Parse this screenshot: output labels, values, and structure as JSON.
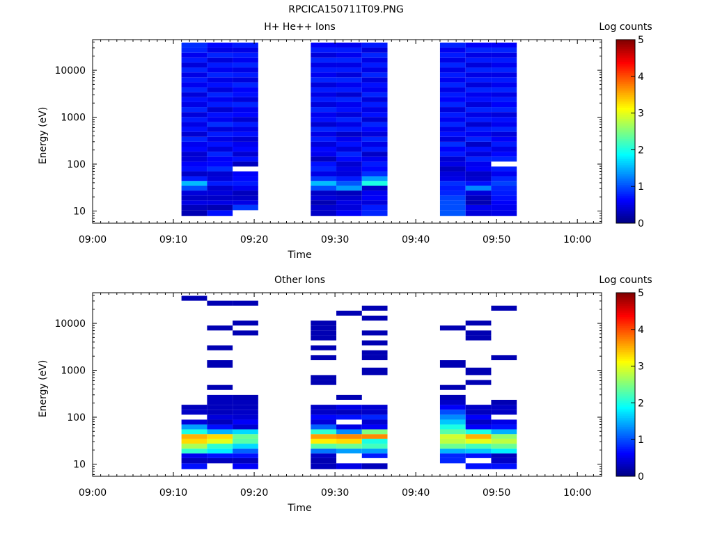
{
  "figure_title": "RPCICA150711T09.PNG",
  "chart_data": [
    {
      "type": "heatmap",
      "title": "H+ He++ Ions",
      "xlabel": "Time",
      "ylabel": "Energy (eV)",
      "yscale": "log",
      "ylim": [
        5.5,
        45000
      ],
      "xlim": [
        "09:00",
        "10:03"
      ],
      "x_ticks": [
        "09:00",
        "09:10",
        "09:20",
        "09:30",
        "09:40",
        "09:50",
        "10:00"
      ],
      "y_ticks": [
        "10",
        "100",
        "1000",
        "10000"
      ],
      "colorbar": {
        "label": "Log counts",
        "min": 0,
        "max": 5,
        "ticks": [
          "0",
          "1",
          "2",
          "3",
          "4",
          "5"
        ],
        "colormap": "jet"
      },
      "grid": false,
      "columns": [
        {
          "start": "09:11:00",
          "end": "09:14:10"
        },
        {
          "start": "09:14:10",
          "end": "09:17:20"
        },
        {
          "start": "09:17:20",
          "end": "09:20:30"
        },
        {
          "start": "09:27:00",
          "end": "09:30:10"
        },
        {
          "start": "09:30:10",
          "end": "09:33:20"
        },
        {
          "start": "09:33:20",
          "end": "09:36:30"
        },
        {
          "start": "09:43:00",
          "end": "09:46:10"
        },
        {
          "start": "09:46:10",
          "end": "09:49:20"
        },
        {
          "start": "09:49:20",
          "end": "09:52:30"
        }
      ],
      "bins": [
        {
          "e": 9,
          "v": [
            0.25,
            0.7,
            null,
            0.35,
            0.6,
            0.8,
            1.05,
            0.45,
            0.5
          ]
        },
        {
          "e": 12,
          "v": [
            0.3,
            0.25,
            0.9,
            0.4,
            0.45,
            0.75,
            1.0,
            0.55,
            0.55
          ]
        },
        {
          "e": 15,
          "v": [
            0.5,
            0.5,
            0.5,
            0.25,
            0.5,
            0.45,
            1.0,
            0.25,
            0.6
          ]
        },
        {
          "e": 19,
          "v": [
            0.35,
            0.35,
            0.35,
            0.45,
            0.4,
            0.6,
            0.95,
            0.3,
            0.7
          ]
        },
        {
          "e": 24,
          "v": [
            0.45,
            0.45,
            0.3,
            0.35,
            0.3,
            0.55,
            0.8,
            0.45,
            0.75
          ]
        },
        {
          "e": 31,
          "v": [
            1.0,
            0.4,
            0.55,
            1.0,
            1.4,
            0.35,
            0.75,
            1.3,
            0.8
          ]
        },
        {
          "e": 39,
          "v": [
            1.55,
            0.75,
            0.75,
            1.55,
            1.05,
            2.0,
            0.85,
            0.7,
            0.95
          ]
        },
        {
          "e": 49,
          "v": [
            0.75,
            0.45,
            0.65,
            0.9,
            0.75,
            1.4,
            0.5,
            0.4,
            0.8
          ]
        },
        {
          "e": 62,
          "v": [
            0.35,
            0.4,
            0.6,
            0.5,
            0.45,
            0.85,
            0.45,
            0.35,
            0.55
          ]
        },
        {
          "e": 79,
          "v": [
            0.7,
            0.85,
            null,
            0.8,
            0.5,
            0.65,
            0.3,
            0.6,
            0.75
          ]
        },
        {
          "e": 100,
          "v": [
            0.6,
            0.65,
            0.3,
            0.7,
            0.4,
            0.75,
            0.5,
            0.55,
            null
          ]
        },
        {
          "e": 128,
          "v": [
            0.45,
            0.6,
            0.7,
            0.3,
            0.65,
            0.55,
            0.4,
            0.8,
            0.8
          ]
        },
        {
          "e": 163,
          "v": [
            0.4,
            0.8,
            0.4,
            0.55,
            0.8,
            0.35,
            0.75,
            0.45,
            0.65
          ]
        },
        {
          "e": 208,
          "v": [
            0.65,
            0.45,
            0.65,
            0.65,
            0.45,
            0.75,
            0.6,
            0.7,
            0.5
          ]
        },
        {
          "e": 265,
          "v": [
            0.55,
            0.7,
            0.55,
            0.45,
            0.7,
            0.5,
            0.85,
            0.35,
            0.75
          ]
        },
        {
          "e": 338,
          "v": [
            0.8,
            0.5,
            0.4,
            0.75,
            0.55,
            0.8,
            0.45,
            0.8,
            0.6
          ]
        },
        {
          "e": 431,
          "v": [
            0.4,
            0.75,
            0.7,
            0.5,
            0.35,
            0.45,
            0.7,
            0.55,
            0.45
          ]
        },
        {
          "e": 549,
          "v": [
            0.7,
            0.45,
            0.5,
            0.8,
            0.75,
            0.65,
            0.5,
            0.75,
            0.8
          ]
        },
        {
          "e": 700,
          "v": [
            0.5,
            0.85,
            0.75,
            0.4,
            0.5,
            0.8,
            0.8,
            0.4,
            0.55
          ]
        },
        {
          "e": 893,
          "v": [
            0.75,
            0.55,
            0.4,
            0.7,
            0.8,
            0.4,
            0.55,
            0.75,
            0.7
          ]
        },
        {
          "e": 1139,
          "v": [
            0.45,
            0.7,
            0.65,
            0.55,
            0.45,
            0.7,
            0.75,
            0.5,
            0.45
          ]
        },
        {
          "e": 1452,
          "v": [
            0.8,
            0.4,
            0.55,
            0.8,
            0.7,
            0.5,
            0.45,
            0.8,
            0.8
          ]
        },
        {
          "e": 1852,
          "v": [
            0.5,
            0.75,
            0.8,
            0.45,
            0.55,
            0.75,
            0.8,
            0.45,
            0.6
          ]
        },
        {
          "e": 2361,
          "v": [
            0.7,
            0.55,
            0.45,
            0.75,
            0.8,
            0.45,
            0.6,
            0.7,
            0.75
          ]
        },
        {
          "e": 3011,
          "v": [
            0.45,
            0.8,
            0.7,
            0.5,
            0.4,
            0.8,
            0.75,
            0.55,
            0.5
          ]
        },
        {
          "e": 3840,
          "v": [
            0.8,
            0.45,
            0.6,
            0.75,
            0.75,
            0.55,
            0.5,
            0.8,
            0.8
          ]
        },
        {
          "e": 4897,
          "v": [
            0.55,
            0.7,
            0.8,
            0.45,
            0.55,
            0.7,
            0.8,
            0.45,
            0.55
          ]
        },
        {
          "e": 6245,
          "v": [
            0.75,
            0.5,
            0.45,
            0.8,
            0.8,
            0.45,
            0.55,
            0.75,
            0.75
          ]
        },
        {
          "e": 7964,
          "v": [
            0.5,
            0.8,
            0.75,
            0.55,
            0.45,
            0.8,
            0.75,
            0.5,
            0.5
          ]
        },
        {
          "e": 10156,
          "v": [
            0.8,
            0.55,
            0.5,
            0.75,
            0.75,
            0.5,
            0.5,
            0.8,
            0.8
          ]
        },
        {
          "e": 12952,
          "v": [
            0.45,
            0.75,
            0.8,
            0.5,
            0.5,
            0.75,
            0.8,
            0.45,
            0.55
          ]
        },
        {
          "e": 16517,
          "v": [
            0.75,
            0.45,
            0.55,
            0.8,
            0.8,
            0.5,
            0.5,
            0.75,
            0.75
          ]
        },
        {
          "e": 21064,
          "v": [
            0.55,
            0.8,
            0.75,
            0.45,
            0.55,
            0.8,
            0.75,
            0.5,
            0.5
          ]
        },
        {
          "e": 26863,
          "v": [
            0.8,
            0.5,
            0.5,
            0.75,
            0.75,
            0.45,
            0.55,
            0.8,
            0.8
          ]
        },
        {
          "e": 34258,
          "v": [
            0.85,
            0.65,
            0.75,
            0.6,
            0.55,
            0.75,
            0.8,
            0.6,
            0.6
          ]
        }
      ]
    },
    {
      "type": "heatmap",
      "title": "Other Ions",
      "xlabel": "Time",
      "ylabel": "Energy (eV)",
      "yscale": "log",
      "ylim": [
        5.5,
        45000
      ],
      "xlim": [
        "09:00",
        "10:03"
      ],
      "x_ticks": [
        "09:00",
        "09:10",
        "09:20",
        "09:30",
        "09:40",
        "09:50",
        "10:00"
      ],
      "y_ticks": [
        "10",
        "100",
        "1000",
        "10000"
      ],
      "colorbar": {
        "label": "Log counts",
        "min": 0,
        "max": 5,
        "ticks": [
          "0",
          "1",
          "2",
          "3",
          "4",
          "5"
        ],
        "colormap": "jet"
      },
      "grid": false,
      "columns": [
        {
          "start": "09:11:00",
          "end": "09:14:10"
        },
        {
          "start": "09:14:10",
          "end": "09:17:20"
        },
        {
          "start": "09:17:20",
          "end": "09:20:30"
        },
        {
          "start": "09:27:00",
          "end": "09:30:10"
        },
        {
          "start": "09:30:10",
          "end": "09:33:20"
        },
        {
          "start": "09:33:20",
          "end": "09:36:30"
        },
        {
          "start": "09:43:00",
          "end": "09:46:10"
        },
        {
          "start": "09:46:10",
          "end": "09:49:20"
        },
        {
          "start": "09:49:20",
          "end": "09:52:30"
        }
      ],
      "bins": [
        {
          "e": 9,
          "v": [
            0.7,
            null,
            0.6,
            0.3,
            0.5,
            0.3,
            null,
            0.7,
            0.7
          ]
        },
        {
          "e": 12,
          "v": [
            0.3,
            0.3,
            0.3,
            0.25,
            null,
            null,
            0.8,
            null,
            0.35
          ]
        },
        {
          "e": 15,
          "v": [
            0.55,
            0.7,
            0.7,
            0.35,
            null,
            0.75,
            0.8,
            0.7,
            0.3
          ]
        },
        {
          "e": 19,
          "v": [
            2.1,
            1.8,
            1.1,
            1.2,
            1.4,
            1.4,
            1.5,
            1.6,
            1.8
          ]
        },
        {
          "e": 24,
          "v": [
            2.7,
            2.1,
            1.7,
            2.3,
            2.4,
            2.2,
            2.4,
            2.2,
            2.4
          ]
        },
        {
          "e": 31,
          "v": [
            3.3,
            3.0,
            2.3,
            3.2,
            3.3,
            2.0,
            2.8,
            3.0,
            2.8
          ]
        },
        {
          "e": 39,
          "v": [
            3.5,
            3.3,
            2.4,
            3.6,
            3.7,
            3.7,
            2.9,
            3.5,
            2.6
          ]
        },
        {
          "e": 49,
          "v": [
            2.0,
            1.5,
            1.7,
            2.1,
            1.3,
            2.5,
            2.3,
            2.0,
            1.5
          ]
        },
        {
          "e": 62,
          "v": [
            1.4,
            0.7,
            0.4,
            1.1,
            0.5,
            0.6,
            2.0,
            0.6,
            0.7
          ]
        },
        {
          "e": 79,
          "v": [
            0.45,
            0.3,
            0.6,
            0.45,
            null,
            0.4,
            1.6,
            0.35,
            0.5
          ]
        },
        {
          "e": 100,
          "v": [
            null,
            0.45,
            0.4,
            0.65,
            0.7,
            0.8,
            1.3,
            0.6,
            null
          ]
        },
        {
          "e": 128,
          "v": [
            0.35,
            0.3,
            0.35,
            0.35,
            0.3,
            0.35,
            1.0,
            0.3,
            0.35
          ]
        },
        {
          "e": 163,
          "v": [
            0.3,
            0.3,
            0.3,
            0.35,
            0.5,
            0.4,
            0.6,
            0.35,
            0.35
          ]
        },
        {
          "e": 208,
          "v": [
            null,
            0.3,
            0.3,
            null,
            null,
            null,
            0.35,
            null,
            0.25
          ]
        },
        {
          "e": 265,
          "v": [
            null,
            0.3,
            0.25,
            null,
            0.25,
            null,
            0.25,
            null,
            null
          ]
        },
        {
          "e": 338,
          "v": [
            null,
            null,
            null,
            null,
            null,
            null,
            null,
            null,
            null
          ]
        },
        {
          "e": 431,
          "v": [
            null,
            0.25,
            null,
            null,
            null,
            null,
            0.25,
            null,
            null
          ]
        },
        {
          "e": 549,
          "v": [
            null,
            null,
            null,
            0.25,
            null,
            null,
            null,
            0.25,
            null
          ]
        },
        {
          "e": 700,
          "v": [
            null,
            null,
            null,
            0.25,
            null,
            null,
            null,
            null,
            null
          ]
        },
        {
          "e": 893,
          "v": [
            null,
            null,
            null,
            null,
            null,
            0.25,
            null,
            0.25,
            null
          ]
        },
        {
          "e": 1452,
          "v": [
            null,
            0.25,
            null,
            null,
            null,
            null,
            0.25,
            null,
            null
          ]
        },
        {
          "e": 1852,
          "v": [
            null,
            null,
            null,
            0.25,
            null,
            0.25,
            null,
            null,
            0.25
          ]
        },
        {
          "e": 2361,
          "v": [
            null,
            null,
            null,
            null,
            null,
            0.25,
            null,
            null,
            null
          ]
        },
        {
          "e": 3011,
          "v": [
            null,
            0.25,
            null,
            0.25,
            null,
            null,
            null,
            null,
            null
          ]
        },
        {
          "e": 3840,
          "v": [
            null,
            null,
            null,
            null,
            null,
            0.25,
            null,
            null,
            null
          ]
        },
        {
          "e": 4897,
          "v": [
            null,
            null,
            null,
            0.25,
            null,
            null,
            null,
            0.25,
            null
          ]
        },
        {
          "e": 6245,
          "v": [
            null,
            null,
            0.25,
            0.25,
            null,
            0.25,
            null,
            0.25,
            null
          ]
        },
        {
          "e": 7964,
          "v": [
            null,
            0.25,
            null,
            0.25,
            null,
            null,
            0.25,
            null,
            null
          ]
        },
        {
          "e": 10156,
          "v": [
            null,
            null,
            0.25,
            0.25,
            null,
            null,
            null,
            0.25,
            null
          ]
        },
        {
          "e": 12952,
          "v": [
            null,
            null,
            null,
            null,
            null,
            0.25,
            null,
            null,
            null
          ]
        },
        {
          "e": 16517,
          "v": [
            null,
            null,
            null,
            null,
            0.25,
            null,
            null,
            null,
            null
          ]
        },
        {
          "e": 21064,
          "v": [
            null,
            null,
            null,
            null,
            null,
            0.25,
            null,
            null,
            0.25
          ]
        },
        {
          "e": 26863,
          "v": [
            null,
            0.25,
            0.25,
            null,
            null,
            null,
            null,
            null,
            null
          ]
        },
        {
          "e": 34258,
          "v": [
            0.25,
            null,
            null,
            null,
            null,
            null,
            null,
            null,
            null
          ]
        }
      ]
    }
  ]
}
